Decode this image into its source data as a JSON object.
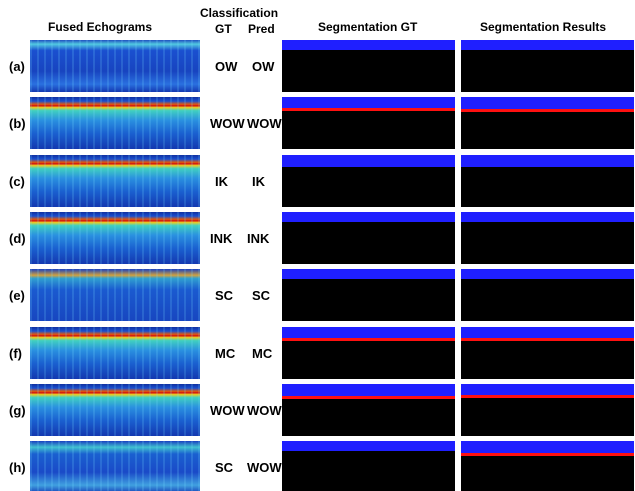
{
  "header": {
    "echograms": "Fused Echograms",
    "classification": "Classification",
    "gt": "GT",
    "pred": "Pred",
    "segmentation_gt": "Segmentation GT",
    "segmentation_results": "Segmentation Results"
  },
  "rows": [
    {
      "label": "(a)",
      "gt": "OW",
      "pred": "OW"
    },
    {
      "label": "(b)",
      "gt": "WOW",
      "pred": "WOW"
    },
    {
      "label": "(c)",
      "gt": "IK",
      "pred": "IK"
    },
    {
      "label": "(d)",
      "gt": "INK",
      "pred": "INK"
    },
    {
      "label": "(e)",
      "gt": "SC",
      "pred": "SC"
    },
    {
      "label": "(f)",
      "gt": "MC",
      "pred": "MC"
    },
    {
      "label": "(g)",
      "gt": "WOW",
      "pred": "WOW"
    },
    {
      "label": "(h)",
      "gt": "SC",
      "pred": "WOW"
    }
  ]
}
